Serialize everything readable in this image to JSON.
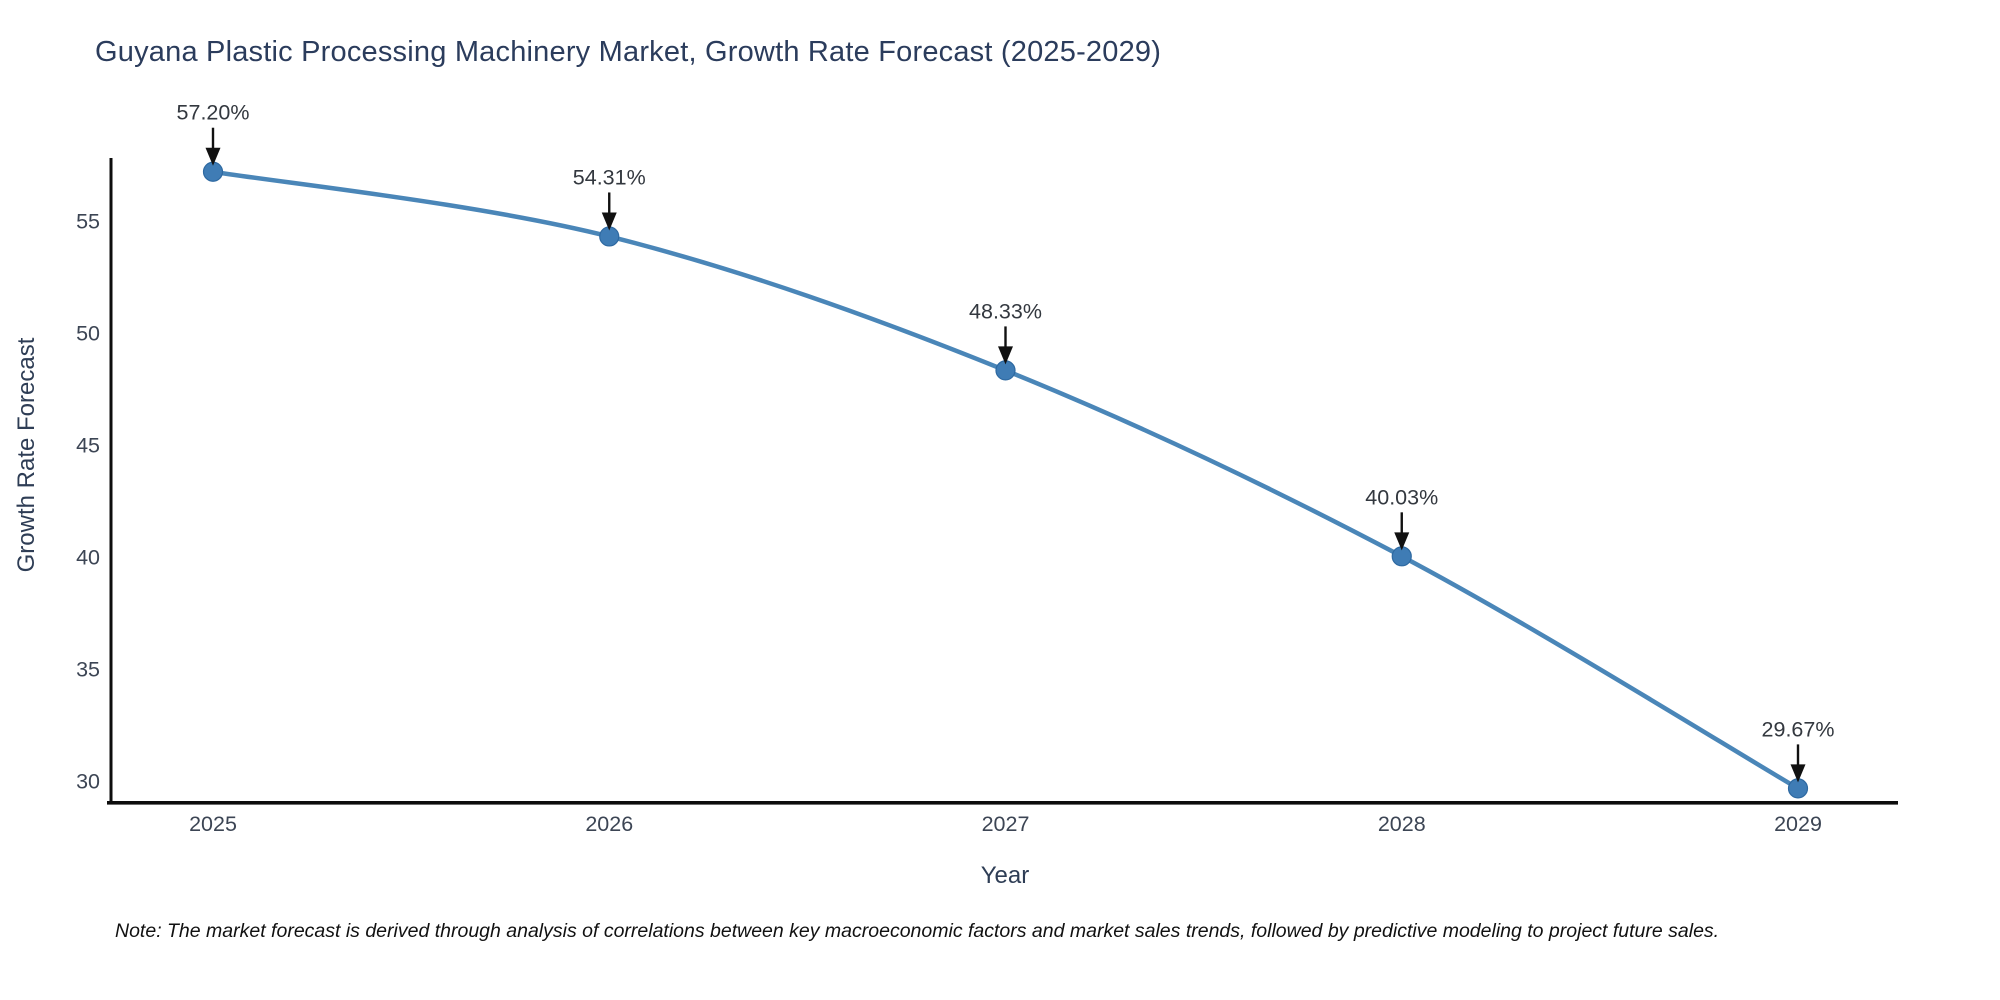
{
  "chart_data": {
    "type": "line",
    "title": "Guyana Plastic Processing Machinery Market, Growth Rate Forecast (2025-2029)",
    "xlabel": "Year",
    "ylabel": "Growth Rate Forecast",
    "categories": [
      "2025",
      "2026",
      "2027",
      "2028",
      "2029"
    ],
    "series": [
      {
        "name": "Growth Rate Forecast",
        "values": [
          57.2,
          54.31,
          48.33,
          40.03,
          29.67
        ],
        "point_labels": [
          "57.20%",
          "54.31%",
          "48.33%",
          "40.03%",
          "29.67%"
        ]
      }
    ],
    "y_ticks": [
      55,
      50,
      45,
      40,
      35,
      30
    ],
    "ylim": [
      29.0,
      57.8
    ],
    "grid": false,
    "legend": "none",
    "annotations": "value labels above each point with downward black arrows",
    "note": "Note: The market forecast is derived through analysis of correlations between key macroeconomic factors and market sales trends, followed by predictive modeling to project future sales.",
    "colors": {
      "line": "#4a86b8",
      "marker_fill": "#3f7cb5",
      "marker_edge": "#2e69a1",
      "axis_spine": "#0d0d0d",
      "tick_label": "#3c4554",
      "annotation_text": "#33383f",
      "annotation_arrow": "#111111",
      "title_text": "#2b3c5c",
      "background": "#ffffff"
    }
  }
}
